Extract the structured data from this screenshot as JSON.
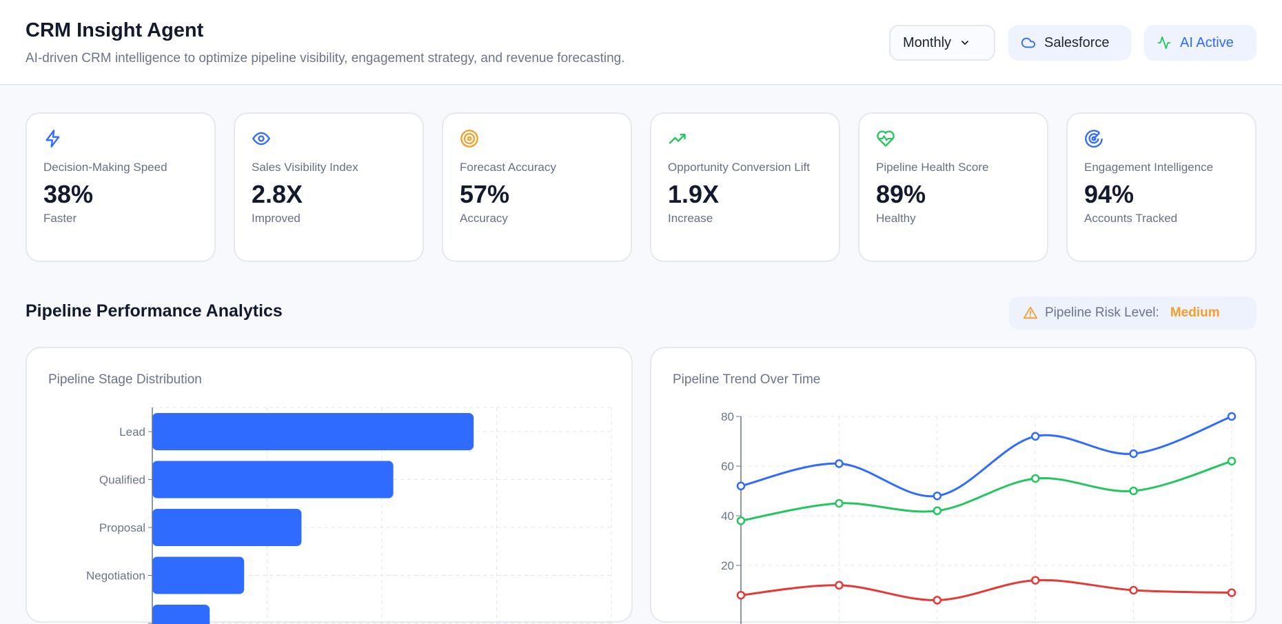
{
  "header": {
    "title": "CRM Insight Agent",
    "subtitle": "AI-driven CRM intelligence to optimize pipeline visibility, engagement strategy, and revenue forecasting.",
    "period_select": "Monthly",
    "integration": "Salesforce",
    "status": "AI Active"
  },
  "kpis": [
    {
      "icon": "zap-icon",
      "color": "#2f6bff",
      "label": "Decision-Making Speed",
      "value": "38%",
      "sub": "Faster"
    },
    {
      "icon": "eye-icon",
      "color": "#2f6bff",
      "label": "Sales Visibility Index",
      "value": "2.8X",
      "sub": "Improved"
    },
    {
      "icon": "target-icon",
      "color": "#f59e2a",
      "label": "Forecast Accuracy",
      "value": "57%",
      "sub": "Accuracy"
    },
    {
      "icon": "trending-up-icon",
      "color": "#22c55e",
      "label": "Opportunity Conversion Lift",
      "value": "1.9X",
      "sub": "Increase"
    },
    {
      "icon": "heart-pulse-icon",
      "color": "#22c55e",
      "label": "Pipeline Health Score",
      "value": "89%",
      "sub": "Healthy"
    },
    {
      "icon": "radar-icon",
      "color": "#2f6bff",
      "label": "Engagement Intelligence",
      "value": "94%",
      "sub": "Accounts Tracked"
    }
  ],
  "section": {
    "title": "Pipeline Performance Analytics",
    "risk_label": "Pipeline Risk Level:",
    "risk_value": "Medium",
    "risk_color": "#f59e2a"
  },
  "chart_data": [
    {
      "type": "bar",
      "orientation": "horizontal",
      "title": "Pipeline Stage Distribution",
      "categories": [
        "Lead",
        "Qualified",
        "Proposal",
        "Negotiation",
        ""
      ],
      "values": [
        140,
        105,
        65,
        40,
        25
      ],
      "xlim": [
        0,
        200
      ],
      "grid": true,
      "color": "#2f6bff"
    },
    {
      "type": "line",
      "title": "Pipeline Trend Over Time",
      "ylim": [
        0,
        80
      ],
      "yticks": [
        20,
        40,
        60,
        80
      ],
      "grid": true,
      "x": [
        1,
        2,
        3,
        4,
        5,
        6
      ],
      "series": [
        {
          "color": "#2f6bff",
          "values": [
            52,
            61,
            48,
            72,
            65,
            80
          ]
        },
        {
          "color": "#22c55e",
          "values": [
            38,
            45,
            42,
            55,
            50,
            62
          ]
        },
        {
          "color": "#e53935",
          "values": [
            8,
            12,
            6,
            14,
            10,
            9
          ]
        }
      ]
    }
  ]
}
